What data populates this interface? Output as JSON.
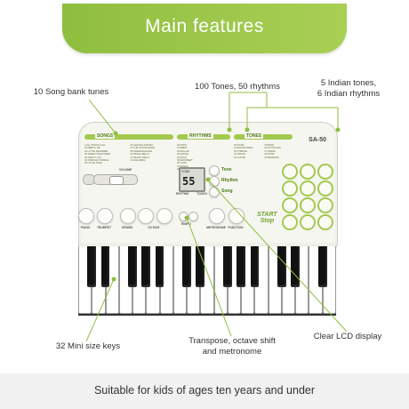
{
  "banner": {
    "title": "Main features"
  },
  "callouts": {
    "song_bank": "10 Song bank tunes",
    "tones_rhythms": "100 Tones, 50 rhythms",
    "indian_line1": "5 Indian tones,",
    "indian_line2": "6 Indian rhythms",
    "mini_keys": "32 Mini size keys",
    "transpose_line1": "Transpose, octave shift",
    "transpose_line2": "and metronome",
    "lcd": "Clear LCD display"
  },
  "keyboard": {
    "model": "SA-50",
    "section_songs": "SONGS",
    "section_rhythms": "RHYTHMS",
    "section_tones": "TONES",
    "volume_label": "VOLUME",
    "lcd_caption": "TONE",
    "lcd_value": "55",
    "mode_tone": "Tone",
    "mode_rhythm": "Rhythm",
    "mode_song": "Song",
    "rhythm_sub": "RHYTHM",
    "touch_sub": "TOUCH",
    "start_stop_line1": "START",
    "start_stop_line2": "Stop",
    "buttons": {
      "piano": "PIANO",
      "trumpet": "TRUMPET",
      "drums": "DRUMS",
      "octave": "OCTAVE",
      "tempo": "TEMPO",
      "metronome": "METRONOME",
      "function": "FUNCTION"
    },
    "songs_list": [
      "1 ALL SONGS CALL",
      "00 MEETS .WF",
      "01 LITTLE DRUMMER",
      "02 SWEET NIGHTMARE",
      "03 ODE TO JOY",
      "04 TWINKLE TWINKLE",
      "05 LITTLE STAR",
      "06 SAKURA SAKURA",
      "07 THE NUTCRACKER",
      "08 GREENSLEEVES",
      "09 JINGLE BELLS",
      "10 SILENT NIGHT",
      "11 AVE MARIA"
    ],
    "rhythms_list": [
      "00 POPS",
      "01 8BEAT",
      "02 BALLAD",
      "03 DANCE",
      "04 ROCK",
      "05 EUROBEAT",
      "06 LATIN",
      "07 BOSSA",
      "08 WALTZ"
    ],
    "tones_list": [
      "00 PIANO",
      "01 WOODS PERC",
      "02 STRINGS",
      "03 ORGAN",
      "04 GUITAR",
      "05 BASS",
      "06 SYNTH PAD",
      "07 BRASS",
      "08 SITAR",
      "09 REVERSE"
    ]
  },
  "footer": {
    "text": "Suitable for kids of ages ten years and under"
  },
  "colors": {
    "accent": "#8fbe3f",
    "accent_dark": "#4d7a12",
    "leader": "#8fbe3f"
  }
}
